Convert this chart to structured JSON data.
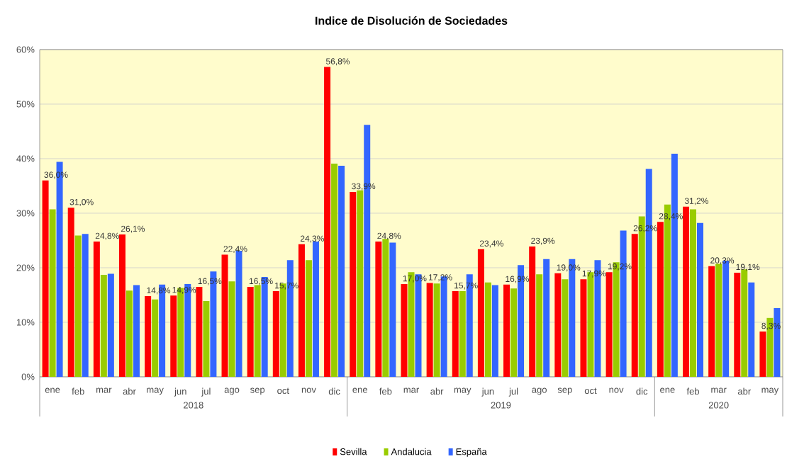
{
  "chart_data": {
    "type": "bar",
    "title": "Indice de Disolución de Sociedades",
    "categories": [
      "ene",
      "feb",
      "mar",
      "abr",
      "may",
      "jun",
      "jul",
      "ago",
      "sep",
      "oct",
      "nov",
      "dic",
      "ene",
      "feb",
      "mar",
      "abr",
      "may",
      "jun",
      "jul",
      "ago",
      "sep",
      "oct",
      "nov",
      "dic",
      "ene",
      "feb",
      "mar",
      "abr",
      "may"
    ],
    "series": [
      {
        "name": "Sevilla",
        "color": "#ff0000",
        "values": [
          36.0,
          31.0,
          24.8,
          26.1,
          14.8,
          14.9,
          16.5,
          22.4,
          16.5,
          15.7,
          24.3,
          56.8,
          33.9,
          24.8,
          17.0,
          17.2,
          15.7,
          23.4,
          16.9,
          23.9,
          19.0,
          17.9,
          19.2,
          26.2,
          28.4,
          31.2,
          20.3,
          19.1,
          8.3
        ],
        "value_labels": [
          "36,0%",
          "31,0%",
          "24,8%",
          "26,1%",
          "14,8%",
          "14,9%",
          "16,5%",
          "22,4%",
          "16,5%",
          "15,7%",
          "24,3%",
          "56,8%",
          "33,9%",
          "24,8%",
          "17,0%",
          "17,2%",
          "15,7%",
          "23,4%",
          "16,9%",
          "23,9%",
          "19,0%",
          "17,9%",
          "19,2%",
          "26,2%",
          "28,4%",
          "31,2%",
          "20,3%",
          "19,1%",
          "8,3%"
        ]
      },
      {
        "name": "Andalucia",
        "color": "#99cc00",
        "values": [
          30.7,
          25.9,
          18.7,
          15.8,
          14.2,
          16.3,
          13.9,
          17.5,
          16.8,
          17.1,
          21.4,
          39.1,
          34.2,
          25.3,
          19.2,
          17.1,
          15.7,
          17.3,
          16.2,
          18.8,
          17.9,
          19.2,
          21.0,
          29.4,
          31.6,
          30.7,
          20.7,
          19.7,
          10.8
        ]
      },
      {
        "name": "España",
        "color": "#3366ff",
        "values": [
          39.4,
          26.2,
          18.9,
          16.8,
          16.9,
          17.0,
          19.3,
          23.1,
          18.3,
          21.4,
          24.8,
          38.7,
          46.2,
          24.6,
          18.8,
          18.4,
          18.8,
          16.8,
          20.5,
          21.6,
          21.6,
          21.4,
          26.8,
          38.1,
          40.9,
          28.2,
          21.3,
          17.3,
          12.6
        ]
      }
    ],
    "ylim": [
      0,
      60
    ],
    "yticks": [
      {
        "value": 0,
        "label": "0%"
      },
      {
        "value": 10,
        "label": "10%"
      },
      {
        "value": 20,
        "label": "20%"
      },
      {
        "value": 30,
        "label": "30%"
      },
      {
        "value": 40,
        "label": "40%"
      },
      {
        "value": 50,
        "label": "50%"
      },
      {
        "value": 60,
        "label": "60%"
      }
    ],
    "grid": "y",
    "legend": "bottom",
    "annotations": [
      "2018",
      "2019",
      "2020"
    ]
  }
}
